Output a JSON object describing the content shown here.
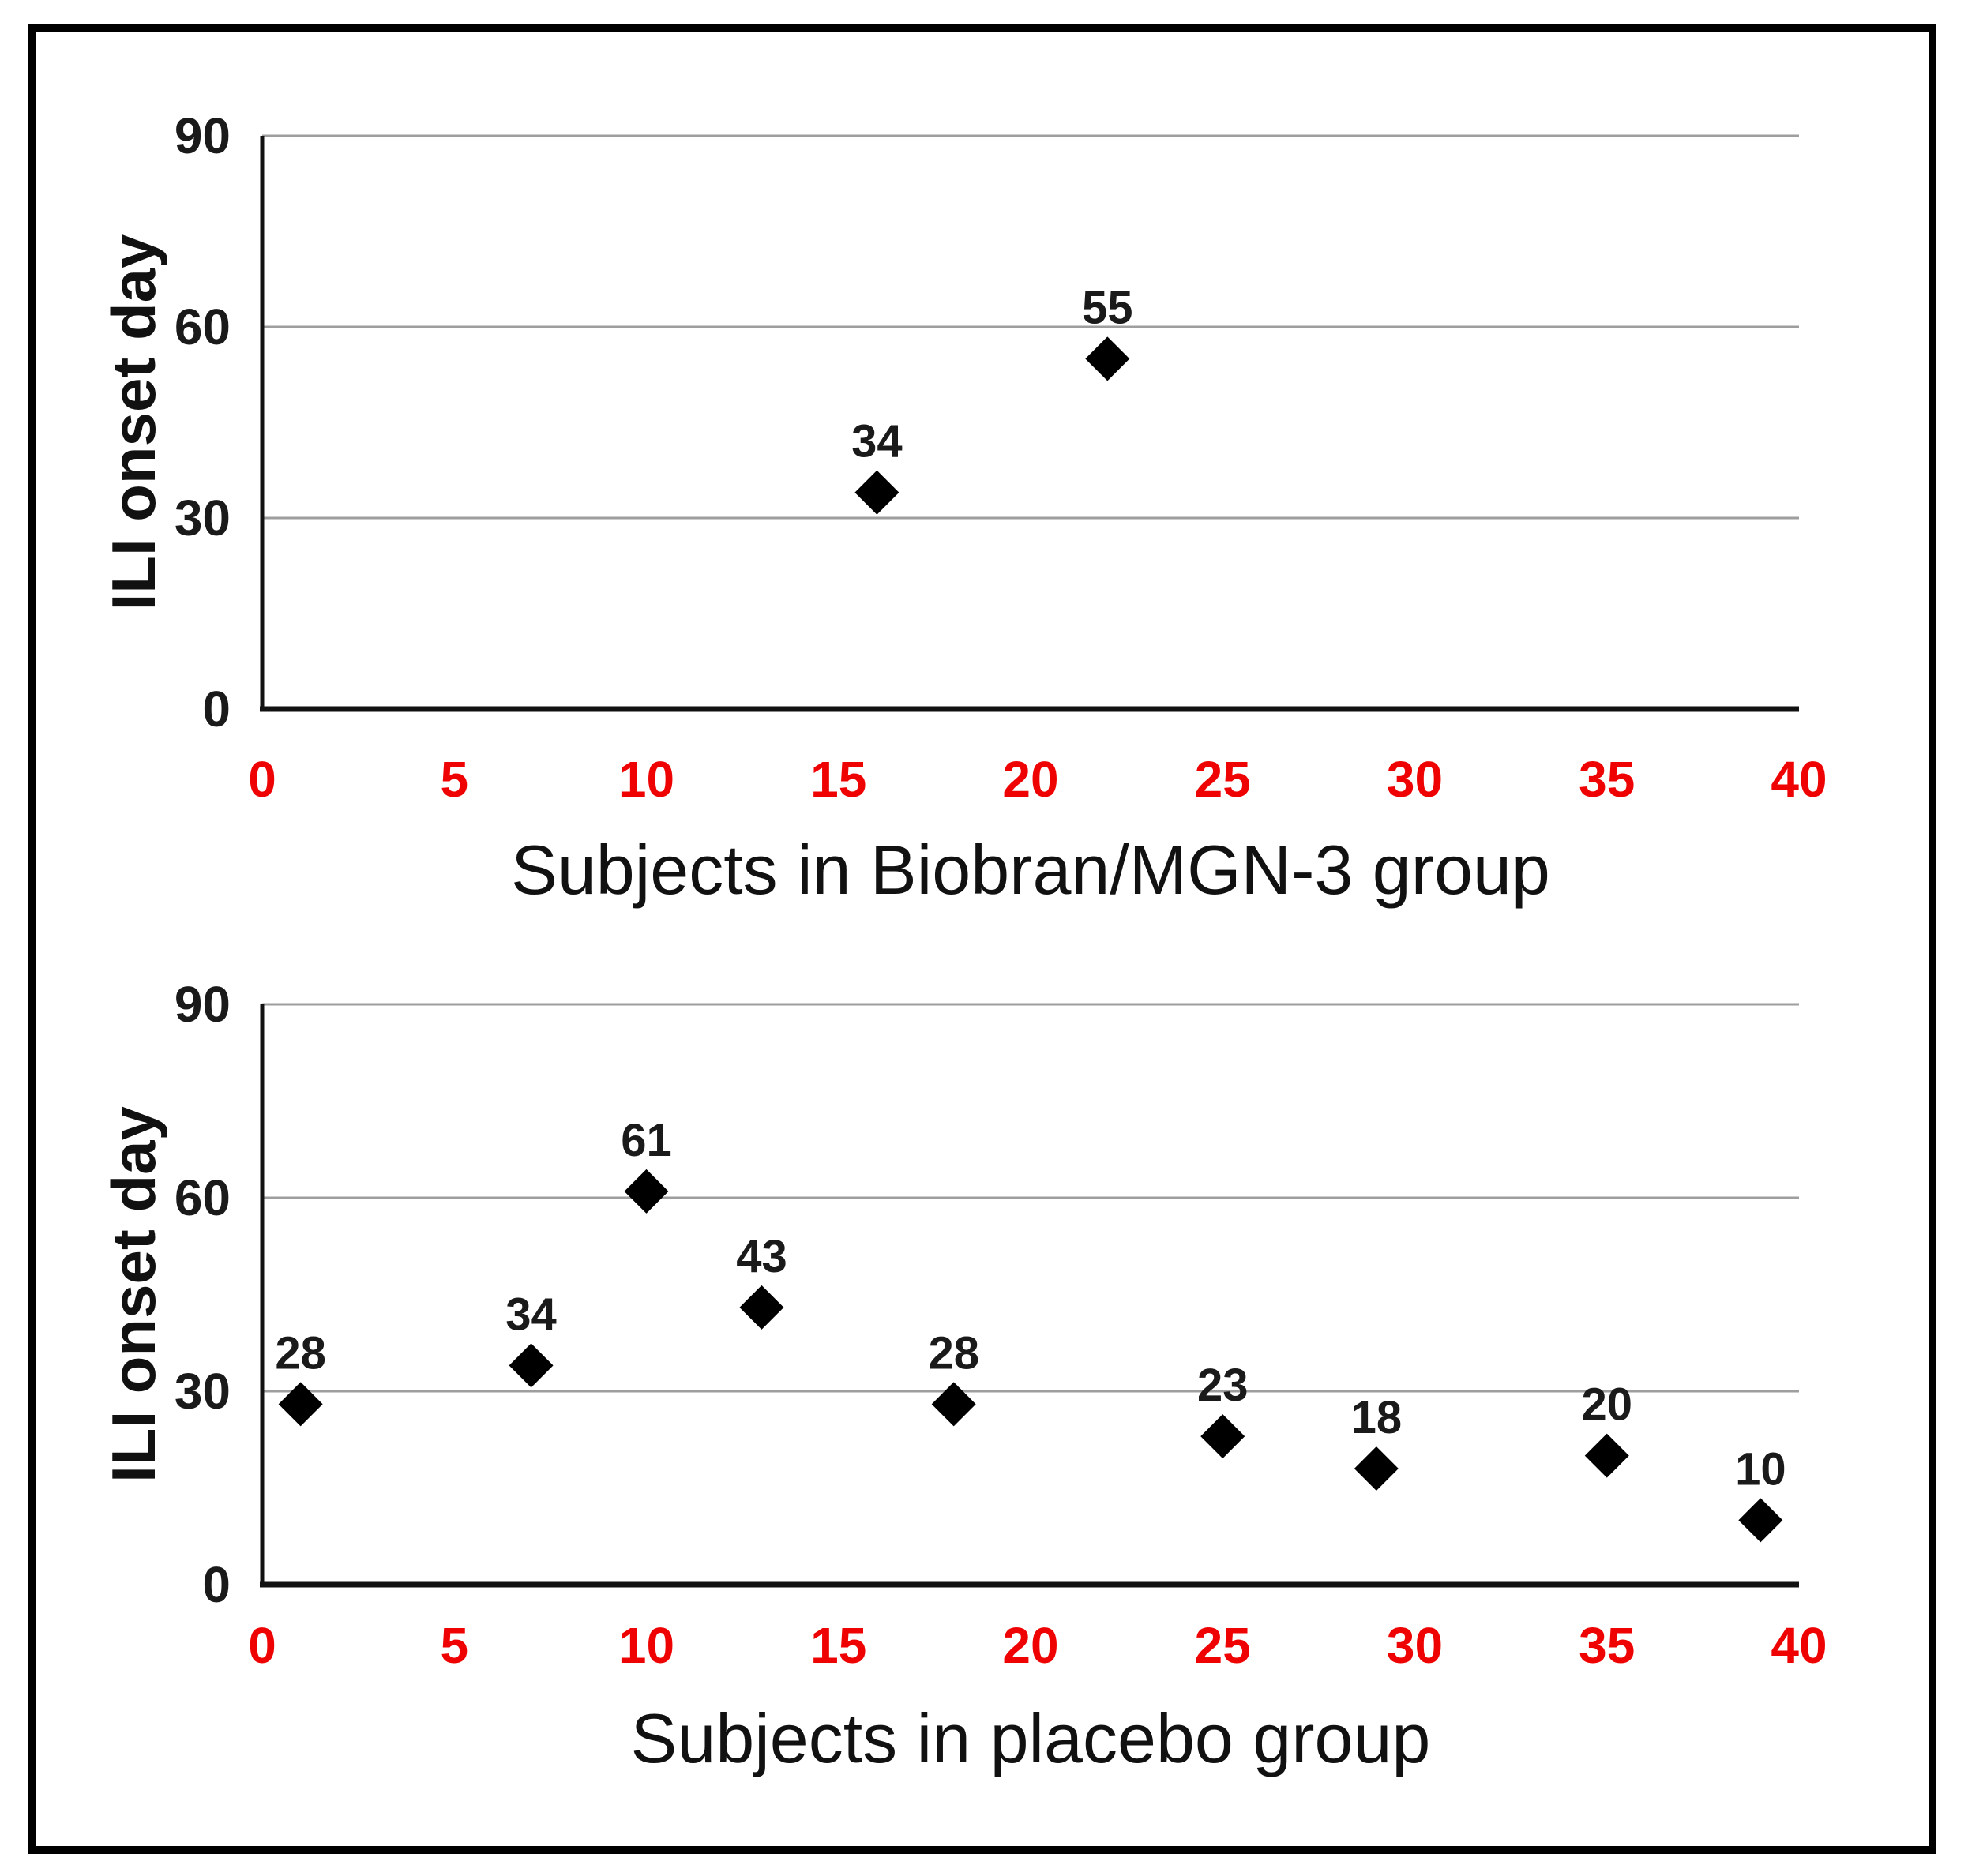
{
  "figure": {
    "background": "#ffffff",
    "border_color": "#000000"
  },
  "chart_data": [
    {
      "type": "scatter",
      "xlabel": "Subjects in Biobran/MGN-3 group",
      "ylabel": "ILI onset day",
      "xlim": [
        0,
        40
      ],
      "ylim": [
        0,
        90
      ],
      "xticks": [
        0,
        5,
        10,
        15,
        20,
        25,
        30,
        35,
        40
      ],
      "yticks": [
        0,
        30,
        60,
        90
      ],
      "grid": "horizontal",
      "legend": "none",
      "marker": "diamond",
      "marker_color": "#000000",
      "xtick_color": "#ee0202",
      "ytick_color": "#1a1a1a",
      "points": [
        {
          "x": 16,
          "y": 34,
          "label": "34"
        },
        {
          "x": 22,
          "y": 55,
          "label": "55"
        }
      ]
    },
    {
      "type": "scatter",
      "xlabel": "Subjects in placebo group",
      "ylabel": "ILI onset day",
      "xlim": [
        0,
        40
      ],
      "ylim": [
        0,
        90
      ],
      "xticks": [
        0,
        5,
        10,
        15,
        20,
        25,
        30,
        35,
        40
      ],
      "yticks": [
        0,
        30,
        60,
        90
      ],
      "grid": "horizontal",
      "legend": "none",
      "marker": "diamond",
      "marker_color": "#000000",
      "xtick_color": "#ee0202",
      "ytick_color": "#1a1a1a",
      "points": [
        {
          "x": 1,
          "y": 28,
          "label": "28"
        },
        {
          "x": 7,
          "y": 34,
          "label": "34"
        },
        {
          "x": 10,
          "y": 61,
          "label": "61"
        },
        {
          "x": 13,
          "y": 43,
          "label": "43"
        },
        {
          "x": 18,
          "y": 28,
          "label": "28"
        },
        {
          "x": 25,
          "y": 23,
          "label": "23"
        },
        {
          "x": 29,
          "y": 18,
          "label": "18"
        },
        {
          "x": 35,
          "y": 20,
          "label": "20"
        },
        {
          "x": 39,
          "y": 10,
          "label": "10"
        }
      ]
    }
  ]
}
